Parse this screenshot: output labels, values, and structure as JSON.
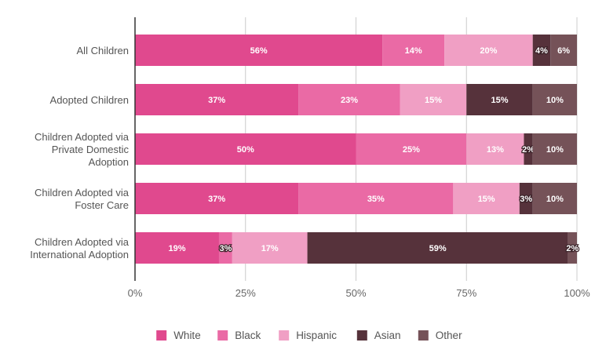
{
  "chart_data": {
    "type": "bar",
    "orientation": "horizontal",
    "stacked": true,
    "categories": [
      [
        "All Children"
      ],
      [
        "Adopted Children"
      ],
      [
        "Children Adopted via",
        "Private Domestic",
        "Adoption"
      ],
      [
        "Children Adopted via",
        "Foster Care"
      ],
      [
        "Children Adopted via",
        "International Adoption"
      ]
    ],
    "series": [
      {
        "name": "White",
        "color": "#e0498e",
        "values": [
          56,
          37,
          50,
          37,
          19
        ]
      },
      {
        "name": "Black",
        "color": "#ea6aa5",
        "values": [
          14,
          23,
          25,
          35,
          3
        ]
      },
      {
        "name": "Hispanic",
        "color": "#f09fc4",
        "values": [
          20,
          15,
          13,
          15,
          17
        ]
      },
      {
        "name": "Asian",
        "color": "#56323b",
        "values": [
          4,
          15,
          2,
          3,
          59
        ]
      },
      {
        "name": "Other",
        "color": "#755258",
        "values": [
          6,
          10,
          10,
          10,
          2
        ]
      }
    ],
    "xlim": [
      0,
      100
    ],
    "xticks": [
      "0%",
      "25%",
      "50%",
      "75%",
      "100%"
    ],
    "grid": true,
    "legend": "bottom",
    "value_suffix": "%"
  }
}
